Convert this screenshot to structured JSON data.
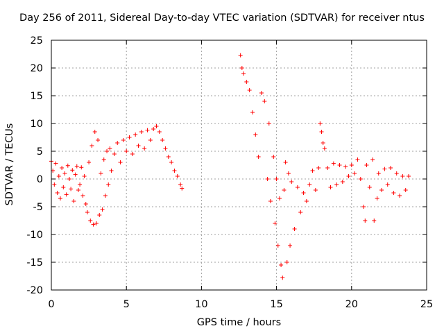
{
  "chart_data": {
    "type": "scatter",
    "title": "Day 256 of 2011, Sidereal Day-to-day VTEC variation (SDTVAR) for receiver ntus",
    "xlabel": "GPS time / hours",
    "ylabel": "SDTVAR / TECUs",
    "xlim": [
      0,
      25
    ],
    "ylim": [
      -20,
      25
    ],
    "xticks": [
      0,
      5,
      10,
      15,
      20,
      25
    ],
    "yticks": [
      -20,
      -15,
      -10,
      -5,
      0,
      5,
      10,
      15,
      20,
      25
    ],
    "grid": true,
    "marker": "+",
    "color": "#ff0000",
    "series": [
      {
        "name": "ntus",
        "points": [
          [
            0.0,
            3.2
          ],
          [
            0.1,
            1.5
          ],
          [
            0.2,
            -1.0
          ],
          [
            0.3,
            2.8
          ],
          [
            0.4,
            -2.5
          ],
          [
            0.5,
            0.5
          ],
          [
            0.6,
            -3.5
          ],
          [
            0.7,
            2.0
          ],
          [
            0.8,
            -1.5
          ],
          [
            0.9,
            1.0
          ],
          [
            1.0,
            -2.8
          ],
          [
            1.1,
            2.4
          ],
          [
            1.2,
            0.0
          ],
          [
            1.3,
            -1.8
          ],
          [
            1.4,
            1.6
          ],
          [
            1.5,
            -4.0
          ],
          [
            1.6,
            0.8
          ],
          [
            1.7,
            2.3
          ],
          [
            1.8,
            -2.0
          ],
          [
            1.9,
            -1.0
          ],
          [
            2.0,
            2.1
          ],
          [
            2.1,
            -3.0
          ],
          [
            2.2,
            0.5
          ],
          [
            2.3,
            -4.5
          ],
          [
            2.4,
            -6.0
          ],
          [
            2.5,
            3.0
          ],
          [
            2.6,
            -7.5
          ],
          [
            2.7,
            6.0
          ],
          [
            2.8,
            -8.2
          ],
          [
            2.9,
            8.5
          ],
          [
            3.0,
            -8.0
          ],
          [
            3.1,
            7.0
          ],
          [
            3.2,
            -6.5
          ],
          [
            3.3,
            1.0
          ],
          [
            3.4,
            -5.5
          ],
          [
            3.5,
            3.5
          ],
          [
            3.6,
            -3.0
          ],
          [
            3.7,
            5.0
          ],
          [
            3.8,
            -1.0
          ],
          [
            3.9,
            5.5
          ],
          [
            4.0,
            1.5
          ],
          [
            4.2,
            4.5
          ],
          [
            4.4,
            6.5
          ],
          [
            4.6,
            3.0
          ],
          [
            4.8,
            7.0
          ],
          [
            5.0,
            5.0
          ],
          [
            5.2,
            7.5
          ],
          [
            5.4,
            4.5
          ],
          [
            5.6,
            8.0
          ],
          [
            5.8,
            6.0
          ],
          [
            6.0,
            8.5
          ],
          [
            6.2,
            5.5
          ],
          [
            6.4,
            8.8
          ],
          [
            6.6,
            7.0
          ],
          [
            6.8,
            9.0
          ],
          [
            7.0,
            9.5
          ],
          [
            7.2,
            8.5
          ],
          [
            7.4,
            7.0
          ],
          [
            7.6,
            5.5
          ],
          [
            7.8,
            4.0
          ],
          [
            8.0,
            3.0
          ],
          [
            8.2,
            1.5
          ],
          [
            8.4,
            0.5
          ],
          [
            8.6,
            -1.0
          ],
          [
            8.7,
            -1.7
          ],
          [
            12.6,
            22.3
          ],
          [
            12.7,
            20.0
          ],
          [
            12.8,
            19.0
          ],
          [
            13.0,
            17.5
          ],
          [
            13.2,
            16.0
          ],
          [
            13.4,
            12.0
          ],
          [
            13.6,
            8.0
          ],
          [
            13.8,
            4.0
          ],
          [
            14.0,
            15.5
          ],
          [
            14.2,
            14.0
          ],
          [
            14.4,
            0.0
          ],
          [
            14.5,
            10.0
          ],
          [
            14.6,
            -4.0
          ],
          [
            14.8,
            4.0
          ],
          [
            14.9,
            -8.0
          ],
          [
            15.0,
            0.0
          ],
          [
            15.1,
            -12.0
          ],
          [
            15.2,
            -3.5
          ],
          [
            15.3,
            -15.5
          ],
          [
            15.4,
            -17.8
          ],
          [
            15.5,
            -2.0
          ],
          [
            15.6,
            3.0
          ],
          [
            15.7,
            -15.0
          ],
          [
            15.8,
            1.0
          ],
          [
            15.9,
            -12.0
          ],
          [
            16.0,
            -0.5
          ],
          [
            16.2,
            -9.0
          ],
          [
            16.4,
            -1.5
          ],
          [
            16.6,
            -6.0
          ],
          [
            16.8,
            -2.5
          ],
          [
            17.0,
            -4.0
          ],
          [
            17.2,
            -1.0
          ],
          [
            17.4,
            1.5
          ],
          [
            17.6,
            -2.0
          ],
          [
            17.8,
            2.0
          ],
          [
            17.9,
            10.0
          ],
          [
            18.0,
            8.5
          ],
          [
            18.1,
            6.5
          ],
          [
            18.2,
            5.5
          ],
          [
            18.4,
            2.0
          ],
          [
            18.6,
            -1.5
          ],
          [
            18.8,
            2.8
          ],
          [
            19.0,
            -1.0
          ],
          [
            19.2,
            2.5
          ],
          [
            19.4,
            -0.5
          ],
          [
            19.6,
            2.2
          ],
          [
            19.8,
            0.5
          ],
          [
            20.0,
            2.5
          ],
          [
            20.2,
            1.0
          ],
          [
            20.4,
            3.5
          ],
          [
            20.6,
            0.0
          ],
          [
            20.8,
            -5.0
          ],
          [
            20.9,
            -7.5
          ],
          [
            21.0,
            2.5
          ],
          [
            21.2,
            -1.5
          ],
          [
            21.4,
            3.5
          ],
          [
            21.5,
            -7.5
          ],
          [
            21.7,
            -3.5
          ],
          [
            21.8,
            1.0
          ],
          [
            22.0,
            -2.0
          ],
          [
            22.2,
            1.8
          ],
          [
            22.4,
            -1.0
          ],
          [
            22.6,
            2.0
          ],
          [
            22.8,
            -2.5
          ],
          [
            23.0,
            1.0
          ],
          [
            23.2,
            -3.0
          ],
          [
            23.4,
            0.5
          ],
          [
            23.6,
            -2.0
          ],
          [
            23.8,
            0.5
          ]
        ]
      }
    ]
  }
}
